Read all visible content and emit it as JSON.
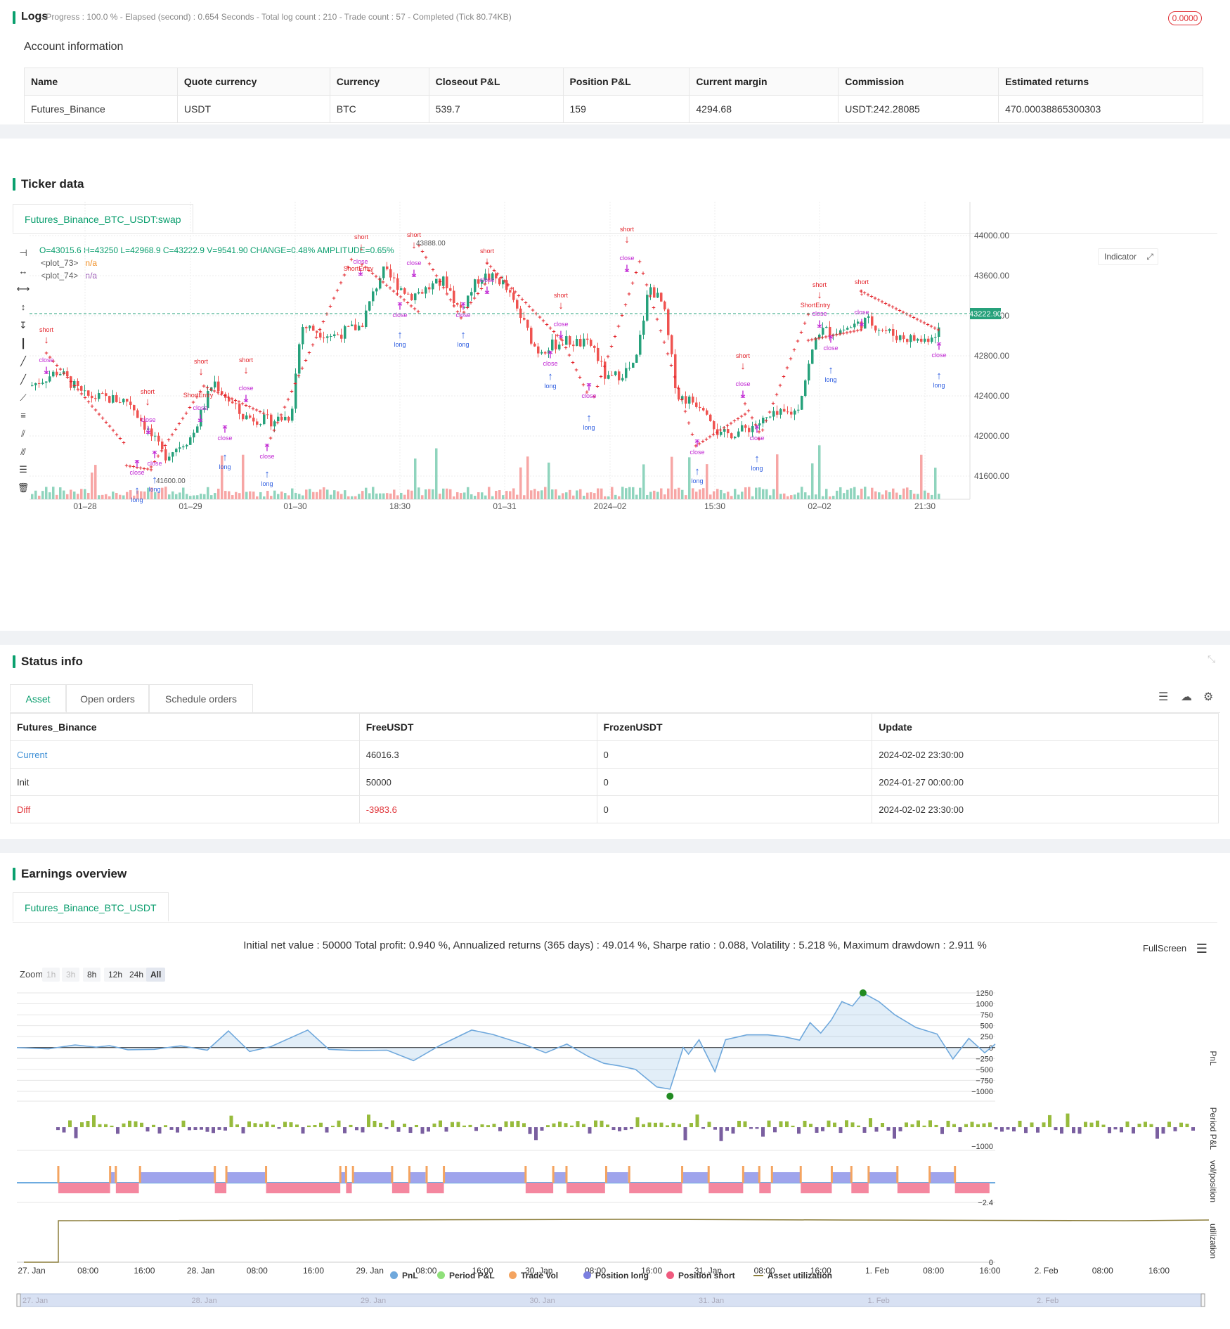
{
  "logs": {
    "title": "Logs",
    "status_line": "- Progress : 100.0 % - Elapsed (second) : 0.654 Seconds - Total log count : 210 - Trade count : 57 - Completed (Tick 80.74KB)",
    "badge": "0.0000"
  },
  "account": {
    "title": "Account information",
    "headers": [
      "Name",
      "Quote currency",
      "Currency",
      "Closeout P&L",
      "Position P&L",
      "Current margin",
      "Commission",
      "Estimated returns"
    ],
    "row": [
      "Futures_Binance",
      "USDT",
      "BTC",
      "539.7",
      "159",
      "4294.68",
      "USDT:242.28085",
      "470.00038865300303"
    ]
  },
  "ticker": {
    "title": "Ticker data",
    "tab": "Futures_Binance_BTC_USDT:swap",
    "ohlc": "O=43015.6 H=43250 L=42968.9 C=43222.9 V=9541.90 CHANGE=0.48% AMPLITUDE=0.65%",
    "plot73_label": "<plot_73>",
    "plot73_value": "n/a",
    "plot74_label": "<plot_74>",
    "plot74_value": "n/a",
    "indicator_btn": "Indicator",
    "last_price": "43222.90",
    "high_label": "43888.00",
    "low_label": "41600.00",
    "y_ticks": [
      "44000.00",
      "43600.00",
      "43200.00",
      "42800.00",
      "42400.00",
      "42000.00",
      "41600.00"
    ],
    "x_ticks": [
      "01–28",
      "01–29",
      "01–30",
      "18:30",
      "01–31",
      "2024–02",
      "15:30",
      "02–02",
      "21:30"
    ],
    "signals": {
      "short": "short",
      "long": "long",
      "close": "close",
      "short_entry": "ShortEntry"
    }
  },
  "status": {
    "title": "Status info",
    "tabs": [
      "Asset",
      "Open orders",
      "Schedule orders"
    ],
    "headers": [
      "Futures_Binance",
      "FreeUSDT",
      "FrozenUSDT",
      "Update"
    ],
    "rows": [
      [
        "Current",
        "46016.3",
        "0",
        "2024-02-02 23:30:00"
      ],
      [
        "Init",
        "50000",
        "0",
        "2024-01-27 00:00:00"
      ],
      [
        "Diff",
        "-3983.6",
        "0",
        "2024-02-02 23:30:00"
      ]
    ],
    "colors": {
      "current": "#3d8fd6",
      "diff": "#e0353a"
    }
  },
  "earnings": {
    "title": "Earnings overview",
    "tab": "Futures_Binance_BTC_USDT",
    "summary": "Initial net value : 50000 Total profit: 0.940 %, Annualized returns (365 days) : 49.014 %, Sharpe ratio : 0.088, Volatility : 5.218 %, Maximum drawdown : 2.911 %",
    "fullscreen": "FullScreen",
    "zoom_label": "Zoom",
    "zoom_buttons": [
      "1h",
      "3h",
      "8h",
      "12h",
      "24h",
      "All"
    ],
    "pnl_ticks": [
      "1250",
      "1000",
      "750",
      "500",
      "250",
      "0",
      "−250",
      "−500",
      "−750",
      "−1000"
    ],
    "period_tick": "−1000",
    "pos_tick": "−2.4",
    "util_tick": "0",
    "axis_titles": [
      "PnL",
      "Period P&L",
      "vol/position",
      "utilization"
    ],
    "x_ticks": [
      "27. Jan",
      "08:00",
      "16:00",
      "28. Jan",
      "08:00",
      "16:00",
      "29. Jan",
      "08:00",
      "16:00",
      "30. Jan",
      "08:00",
      "16:00",
      "31. Jan",
      "08:00",
      "16:00",
      "1. Feb",
      "08:00",
      "16:00",
      "2. Feb",
      "08:00",
      "16:00"
    ],
    "nav_ticks": [
      "27. Jan",
      "28. Jan",
      "29. Jan",
      "30. Jan",
      "31. Jan",
      "1. Feb",
      "2. Feb"
    ],
    "legend": [
      {
        "name": "PnL",
        "color": "#6fa8dc"
      },
      {
        "name": "Period P&L",
        "color": "#8fe07a"
      },
      {
        "name": "Trade Vol",
        "color": "#f4a460"
      },
      {
        "name": "Position long",
        "color": "#7b7fe0"
      },
      {
        "name": "Position short",
        "color": "#f05a7e"
      },
      {
        "name": "Asset utilization",
        "color": "#8b7d3a"
      }
    ]
  }
}
